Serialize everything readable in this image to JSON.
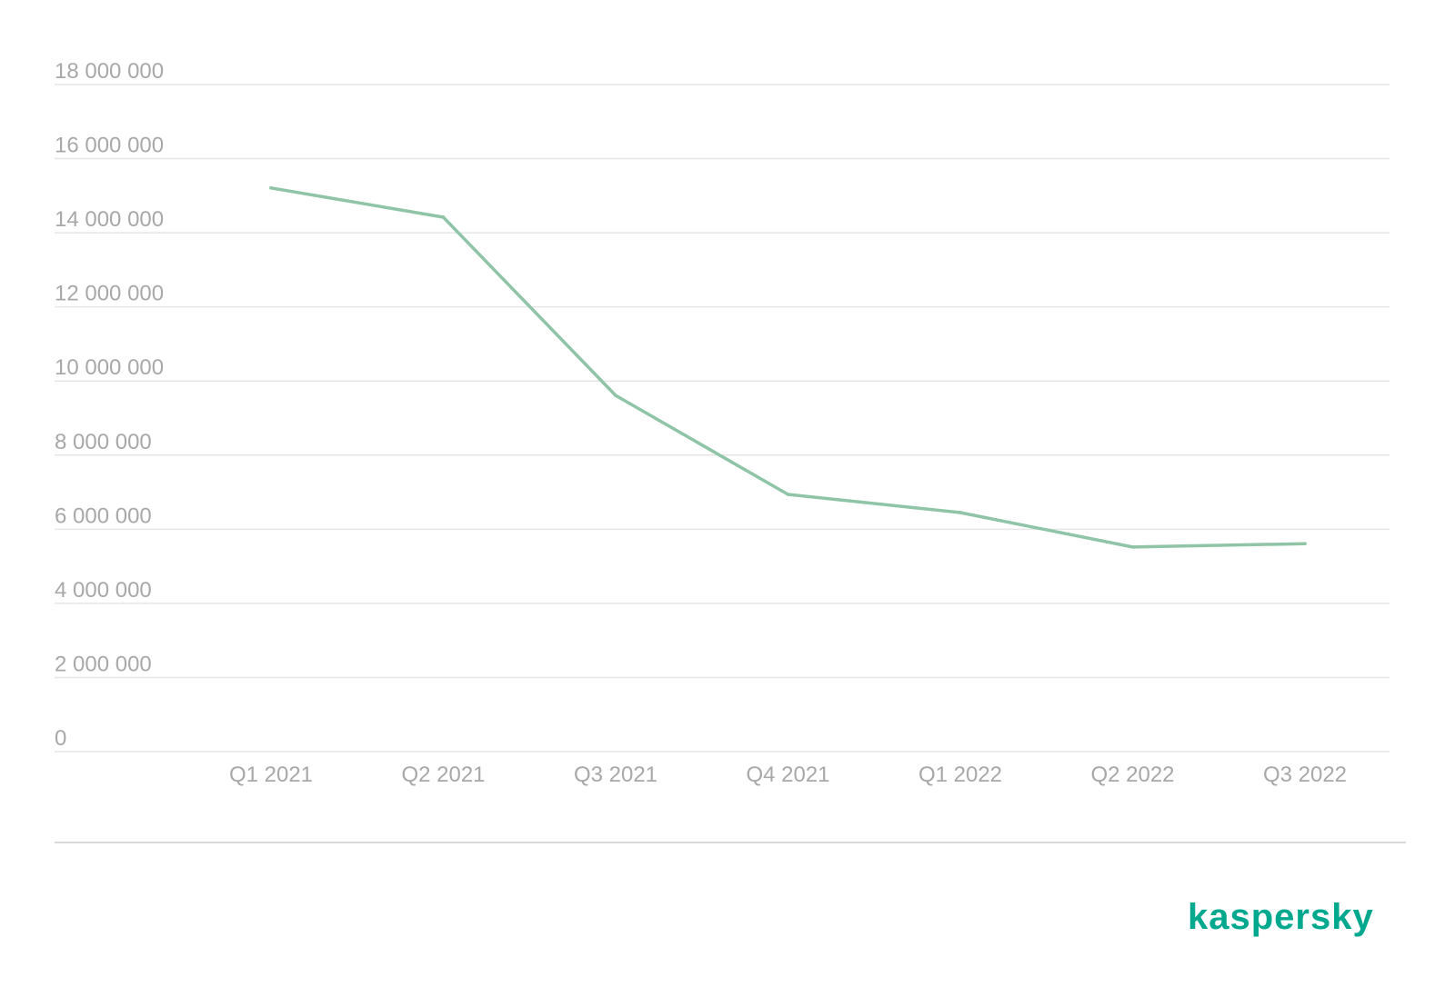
{
  "chart_data": {
    "type": "line",
    "title": "",
    "xlabel": "",
    "ylabel": "",
    "categories": [
      "Q1 2021",
      "Q2 2021",
      "Q3 2021",
      "Q4 2021",
      "Q1 2022",
      "Q2 2022",
      "Q3 2022"
    ],
    "series": [
      {
        "values": [
          15210000,
          14420000,
          9610000,
          6940000,
          6450000,
          5520000,
          5610000
        ]
      }
    ],
    "ylim": [
      0,
      18000000
    ],
    "y_ticks": [
      {
        "value": 0,
        "label": "0"
      },
      {
        "value": 2000000,
        "label": "2 000 000"
      },
      {
        "value": 4000000,
        "label": "4 000 000"
      },
      {
        "value": 6000000,
        "label": "6 000 000"
      },
      {
        "value": 8000000,
        "label": "8 000 000"
      },
      {
        "value": 10000000,
        "label": "10 000 000"
      },
      {
        "value": 12000000,
        "label": "12 000 000"
      },
      {
        "value": 14000000,
        "label": "14 000 000"
      },
      {
        "value": 16000000,
        "label": "16 000 000"
      },
      {
        "value": 18000000,
        "label": "18 000 000"
      }
    ],
    "grid": true,
    "legend": "none",
    "colors": {
      "line": "#8fc4a6",
      "grid": "#e6e6e6",
      "separator": "#d9d9d9",
      "tick_text": "#a8a8a8"
    }
  },
  "brand": {
    "name": "kaspersky",
    "color": "#00a88e"
  }
}
